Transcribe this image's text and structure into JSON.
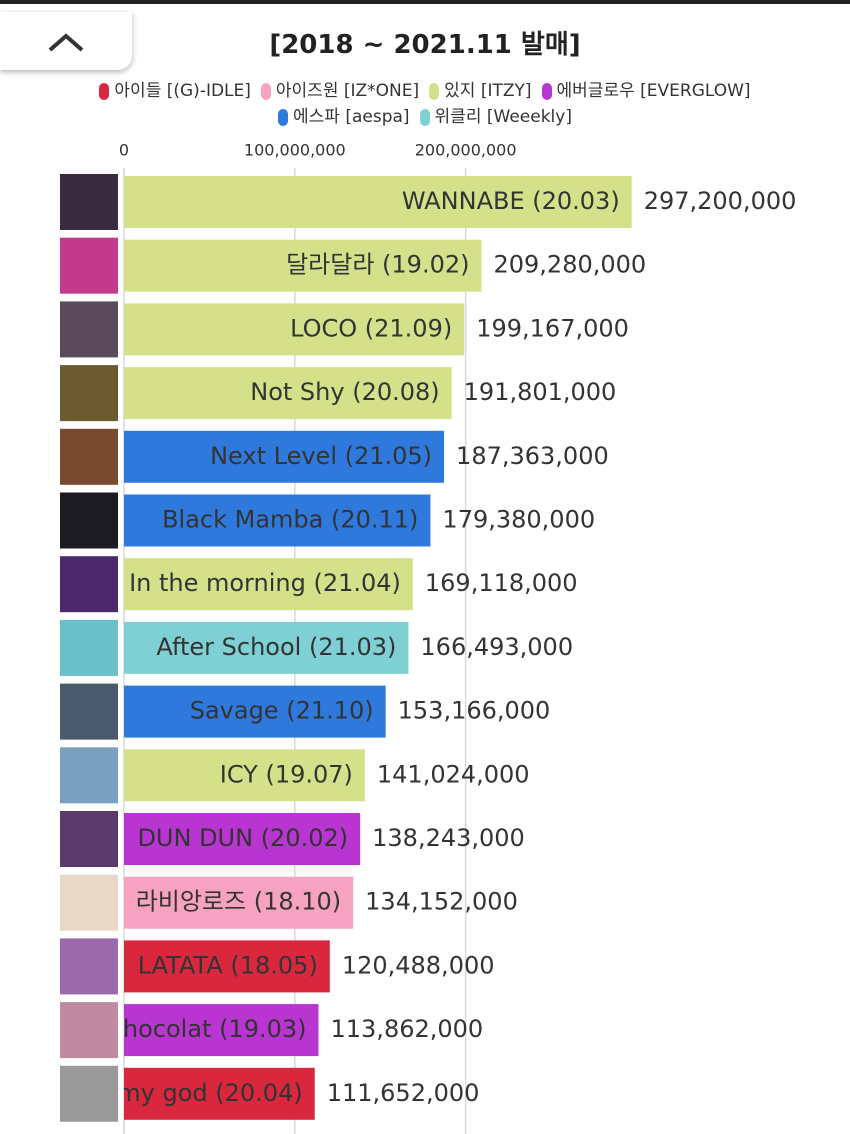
{
  "chart_data": {
    "type": "bar",
    "orientation": "horizontal",
    "title": "[2018 ~ 2021.11 발매]",
    "categories": [
      "WANNABE (20.03)",
      "달라달라 (19.02)",
      "LOCO (21.09)",
      "Not Shy (20.08)",
      "Next Level (21.05)",
      "Black Mamba (20.11)",
      "In the morning (21.04)",
      "After School (21.03)",
      "Savage (21.10)",
      "ICY (19.07)",
      "DUN DUN (20.02)",
      "라비앙로즈 (18.10)",
      "LATATA (18.05)",
      "hocolat (19.03)",
      "my god (20.04)"
    ],
    "series": [
      {
        "name": "아이들 [(G)-IDLE]",
        "color": "#d9283e",
        "values": [
          null,
          null,
          null,
          null,
          null,
          null,
          null,
          null,
          null,
          null,
          null,
          null,
          120488000,
          null,
          111652000
        ],
        "value_labels": [
          null,
          null,
          null,
          null,
          null,
          null,
          null,
          null,
          null,
          null,
          null,
          null,
          "120,488,000",
          null,
          "111,652,000"
        ]
      },
      {
        "name": "아이즈원 [IZ*ONE]",
        "color": "#f8a2c2",
        "values": [
          null,
          null,
          null,
          null,
          null,
          null,
          null,
          null,
          null,
          null,
          null,
          134152000,
          null,
          null,
          null
        ],
        "value_labels": [
          null,
          null,
          null,
          null,
          null,
          null,
          null,
          null,
          null,
          null,
          null,
          "134,152,000",
          null,
          null,
          null
        ]
      },
      {
        "name": "있지 [ITZY]",
        "color": "#d5e08b",
        "values": [
          297200000,
          209280000,
          199167000,
          191801000,
          null,
          null,
          169118000,
          null,
          null,
          141024000,
          null,
          null,
          null,
          null,
          null
        ],
        "value_labels": [
          "297,200,000",
          "209,280,000",
          "199,167,000",
          "191,801,000",
          null,
          null,
          "169,118,000",
          null,
          null,
          "141,024,000",
          null,
          null,
          null,
          null,
          null
        ]
      },
      {
        "name": "에버글로우 [EVERGLOW]",
        "color": "#b935d2",
        "values": [
          null,
          null,
          null,
          null,
          null,
          null,
          null,
          null,
          null,
          null,
          138243000,
          null,
          null,
          113862000,
          null
        ],
        "value_labels": [
          null,
          null,
          null,
          null,
          null,
          null,
          null,
          null,
          null,
          null,
          "138,243,000",
          null,
          null,
          "113,862,000",
          null
        ]
      },
      {
        "name": "에스파 [aespa]",
        "color": "#3079dc",
        "values": [
          null,
          null,
          null,
          null,
          187363000,
          179380000,
          null,
          null,
          153166000,
          null,
          null,
          null,
          null,
          null,
          null
        ],
        "value_labels": [
          null,
          null,
          null,
          null,
          "187,363,000",
          "179,380,000",
          null,
          null,
          "153,166,000",
          null,
          null,
          null,
          null,
          null,
          null
        ]
      },
      {
        "name": "위클리 [Weeekly]",
        "color": "#7fd0d5",
        "values": [
          null,
          null,
          null,
          null,
          null,
          null,
          null,
          166493000,
          null,
          null,
          null,
          null,
          null,
          null,
          null
        ],
        "value_labels": [
          null,
          null,
          null,
          null,
          null,
          null,
          null,
          "166,493,000",
          null,
          null,
          null,
          null,
          null,
          null,
          null
        ]
      }
    ],
    "xlim": [
      0,
      425000000
    ],
    "xticks": [
      0,
      {
        "value": 100000000,
        "label": "100,000,000"
      },
      {
        "value": 200000000,
        "label": "200,000,000"
      }
    ],
    "grid": true
  }
}
